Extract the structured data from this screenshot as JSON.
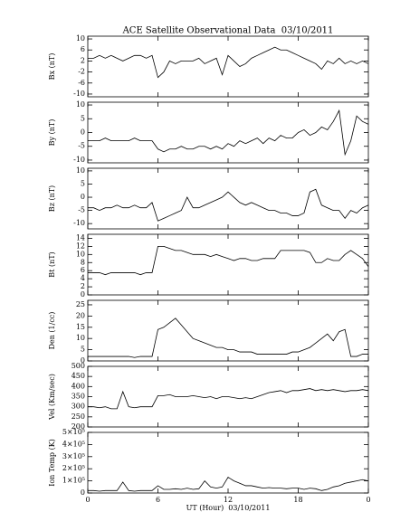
{
  "chart_data": [
    {
      "type": "line",
      "title": "ACE Satellite Observational Data  03/10/2011",
      "ylabel": "Bx (nT)",
      "x": [
        0,
        0.5,
        1,
        1.5,
        2,
        2.5,
        3,
        3.5,
        4,
        4.5,
        5,
        5.5,
        6,
        6.5,
        7,
        7.5,
        8,
        8.5,
        9,
        9.5,
        10,
        10.5,
        11,
        11.5,
        12,
        12.5,
        13,
        13.5,
        14,
        14.5,
        15,
        15.5,
        16,
        16.5,
        17,
        17.5,
        18,
        18.5,
        19,
        19.5,
        20,
        20.5,
        21,
        21.5,
        22,
        22.5,
        23,
        23.5,
        24
      ],
      "values": [
        3,
        3,
        4,
        3,
        4,
        3,
        2,
        3,
        4,
        4,
        3,
        4,
        -4,
        -2,
        2,
        1,
        2,
        2,
        2,
        3,
        1,
        2,
        3,
        -3,
        4,
        2,
        0,
        1,
        3,
        4,
        5,
        6,
        7,
        6,
        6,
        5,
        4,
        3,
        2,
        1,
        -1,
        2,
        1,
        3,
        1,
        2,
        1,
        2,
        1
      ],
      "ylim": [
        -11,
        11
      ],
      "yticks": [
        -10,
        -6,
        -2,
        2,
        6,
        10
      ],
      "color": "#000000"
    },
    {
      "type": "line",
      "ylabel": "By (nT)",
      "x": [
        0,
        0.5,
        1,
        1.5,
        2,
        2.5,
        3,
        3.5,
        4,
        4.5,
        5,
        5.5,
        6,
        6.5,
        7,
        7.5,
        8,
        8.5,
        9,
        9.5,
        10,
        10.5,
        11,
        11.5,
        12,
        12.5,
        13,
        13.5,
        14,
        14.5,
        15,
        15.5,
        16,
        16.5,
        17,
        17.5,
        18,
        18.5,
        19,
        19.5,
        20,
        20.5,
        21,
        21.5,
        22,
        22.5,
        23,
        23.5,
        24
      ],
      "values": [
        -3,
        -3,
        -3,
        -2,
        -3,
        -3,
        -3,
        -3,
        -2,
        -3,
        -3,
        -3,
        -6,
        -7,
        -6,
        -6,
        -5,
        -6,
        -6,
        -5,
        -5,
        -6,
        -5,
        -6,
        -4,
        -5,
        -3,
        -4,
        -3,
        -2,
        -4,
        -2,
        -3,
        -1,
        -2,
        -2,
        0,
        1,
        -1,
        0,
        2,
        1,
        4,
        8,
        -8,
        -3,
        6,
        4,
        3
      ],
      "ylim": [
        -11,
        11
      ],
      "yticks": [
        -10,
        -5,
        0,
        5,
        10
      ],
      "color": "#000000"
    },
    {
      "type": "line",
      "ylabel": "Bz (nT)",
      "x": [
        0,
        0.5,
        1,
        1.5,
        2,
        2.5,
        3,
        3.5,
        4,
        4.5,
        5,
        5.5,
        6,
        6.5,
        7,
        7.5,
        8,
        8.5,
        9,
        9.5,
        10,
        10.5,
        11,
        11.5,
        12,
        12.5,
        13,
        13.5,
        14,
        14.5,
        15,
        15.5,
        16,
        16.5,
        17,
        17.5,
        18,
        18.5,
        19,
        19.5,
        20,
        20.5,
        21,
        21.5,
        22,
        22.5,
        23,
        23.5,
        24
      ],
      "values": [
        -4,
        -4,
        -5,
        -4,
        -4,
        -3,
        -4,
        -4,
        -3,
        -4,
        -4,
        -2,
        -9,
        -8,
        -7,
        -6,
        -5,
        0,
        -4,
        -4,
        -3,
        -2,
        -1,
        0,
        2,
        0,
        -2,
        -3,
        -2,
        -3,
        -4,
        -5,
        -5,
        -6,
        -6,
        -7,
        -7,
        -6,
        2,
        3,
        -3,
        -4,
        -5,
        -5,
        -8,
        -5,
        -6,
        -4,
        -3
      ],
      "ylim": [
        -12,
        11
      ],
      "yticks": [
        -10,
        -5,
        0,
        5,
        10
      ],
      "color": "#000000"
    },
    {
      "type": "line",
      "ylabel": "Bt (nT)",
      "x": [
        0,
        0.5,
        1,
        1.5,
        2,
        2.5,
        3,
        3.5,
        4,
        4.5,
        5,
        5.5,
        6,
        6.5,
        7,
        7.5,
        8,
        8.5,
        9,
        9.5,
        10,
        10.5,
        11,
        11.5,
        12,
        12.5,
        13,
        13.5,
        14,
        14.5,
        15,
        15.5,
        16,
        16.5,
        17,
        17.5,
        18,
        18.5,
        19,
        19.5,
        20,
        20.5,
        21,
        21.5,
        22,
        22.5,
        23,
        23.5,
        24
      ],
      "values": [
        5.5,
        5.5,
        5.5,
        5,
        5.5,
        5.5,
        5.5,
        5.5,
        5.5,
        5,
        5.5,
        5.5,
        12,
        12,
        11.5,
        11,
        11,
        10.5,
        10,
        10,
        10,
        9.5,
        10,
        9.5,
        9,
        8.5,
        9,
        9,
        8.5,
        8.5,
        9,
        9,
        9,
        11,
        11,
        11,
        11,
        11,
        10.5,
        8,
        8,
        9,
        8.5,
        8.5,
        10,
        11,
        10,
        9,
        7
      ],
      "ylim": [
        0,
        15
      ],
      "yticks": [
        0,
        2,
        4,
        6,
        8,
        10,
        12,
        14
      ],
      "color": "#000000"
    },
    {
      "type": "line",
      "ylabel": "Den (1/cc)",
      "x": [
        0,
        0.5,
        1,
        1.5,
        2,
        2.5,
        3,
        3.5,
        4,
        4.5,
        5,
        5.5,
        6,
        6.5,
        7,
        7.5,
        8,
        8.5,
        9,
        9.5,
        10,
        10.5,
        11,
        11.5,
        12,
        12.5,
        13,
        13.5,
        14,
        14.5,
        15,
        15.5,
        16,
        16.5,
        17,
        17.5,
        18,
        18.5,
        19,
        19.5,
        20,
        20.5,
        21,
        21.5,
        22,
        22.5,
        23,
        23.5,
        24
      ],
      "values": [
        2,
        2,
        2,
        2,
        2,
        2,
        2,
        2,
        1.5,
        2,
        2,
        2,
        14,
        15,
        17,
        19,
        16,
        13,
        10,
        9,
        8,
        7,
        6,
        6,
        5,
        5,
        4,
        4,
        4,
        3,
        3,
        3,
        3,
        3,
        3,
        4,
        4,
        5,
        6,
        8,
        10,
        12,
        9,
        13,
        14,
        2,
        2,
        3,
        3
      ],
      "ylim": [
        0,
        27
      ],
      "yticks": [
        0,
        5,
        10,
        15,
        20,
        25
      ],
      "color": "#000000"
    },
    {
      "type": "line",
      "ylabel": "Vel (Km/sec)",
      "x": [
        0,
        0.5,
        1,
        1.5,
        2,
        2.5,
        3,
        3.5,
        4,
        4.5,
        5,
        5.5,
        6,
        6.5,
        7,
        7.5,
        8,
        8.5,
        9,
        9.5,
        10,
        10.5,
        11,
        11.5,
        12,
        12.5,
        13,
        13.5,
        14,
        14.5,
        15,
        15.5,
        16,
        16.5,
        17,
        17.5,
        18,
        18.5,
        19,
        19.5,
        20,
        20.5,
        21,
        21.5,
        22,
        22.5,
        23,
        23.5,
        24
      ],
      "values": [
        300,
        300,
        295,
        300,
        290,
        290,
        375,
        300,
        295,
        300,
        300,
        300,
        355,
        355,
        360,
        350,
        350,
        350,
        355,
        350,
        345,
        350,
        340,
        350,
        350,
        345,
        340,
        345,
        340,
        350,
        360,
        370,
        375,
        380,
        370,
        380,
        380,
        385,
        390,
        380,
        385,
        380,
        385,
        380,
        375,
        380,
        380,
        385,
        380
      ],
      "ylim": [
        200,
        500
      ],
      "yticks": [
        200,
        250,
        300,
        350,
        400,
        450,
        500
      ],
      "color": "#000000"
    },
    {
      "type": "line",
      "ylabel": "Ion Temp (K)",
      "xlabel": "UT (Hour)  03/10/2011",
      "x": [
        0,
        0.5,
        1,
        1.5,
        2,
        2.5,
        3,
        3.5,
        4,
        4.5,
        5,
        5.5,
        6,
        6.5,
        7,
        7.5,
        8,
        8.5,
        9,
        9.5,
        10,
        10.5,
        11,
        11.5,
        12,
        12.5,
        13,
        13.5,
        14,
        14.5,
        15,
        15.5,
        16,
        16.5,
        17,
        17.5,
        18,
        18.5,
        19,
        19.5,
        20,
        20.5,
        21,
        21.5,
        22,
        22.5,
        23,
        23.5,
        24
      ],
      "values": [
        20000,
        20000,
        15000,
        20000,
        20000,
        20000,
        90000,
        20000,
        15000,
        20000,
        20000,
        20000,
        60000,
        30000,
        30000,
        35000,
        30000,
        40000,
        30000,
        35000,
        100000,
        50000,
        40000,
        50000,
        130000,
        100000,
        80000,
        60000,
        60000,
        50000,
        40000,
        45000,
        40000,
        40000,
        35000,
        40000,
        40000,
        30000,
        40000,
        35000,
        20000,
        30000,
        50000,
        60000,
        80000,
        90000,
        100000,
        110000,
        100000
      ],
      "ylim": [
        0,
        500000
      ],
      "yticks": [
        0,
        {
          "value": 100000,
          "label": "1×10⁵"
        },
        {
          "value": 200000,
          "label": "2×10⁵"
        },
        {
          "value": 300000,
          "label": "3×10⁵"
        },
        {
          "value": 400000,
          "label": "4×10⁵"
        },
        {
          "value": 500000,
          "label": "5×10⁵"
        }
      ],
      "xlim": [
        0,
        24
      ],
      "xticks": [
        0,
        6,
        12,
        18,
        {
          "value": 24,
          "label": "0"
        }
      ],
      "color": "#000000"
    }
  ]
}
